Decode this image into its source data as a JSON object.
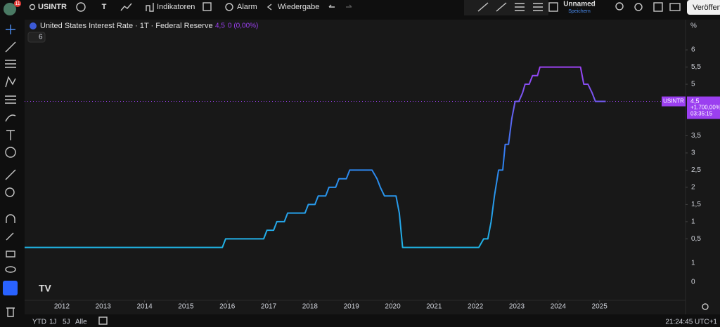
{
  "toolbar": {
    "badge": "11",
    "symbol": "USINTR",
    "interval": "T",
    "indicators": "Indikatoren",
    "alarm": "Alarm",
    "replay": "Wiedergabe",
    "layout_name": "Unnamed",
    "save": "Speichern",
    "publish": "Veröffentl"
  },
  "legend": {
    "value": "4,5",
    "change": "0 (0,00%)",
    "indicator_count": "6"
  },
  "scale_mode": "%",
  "lower_axis_labels": [
    "1",
    "0"
  ],
  "chart_data": {
    "type": "line",
    "x": [
      2011.1,
      2015.88,
      2015.96,
      2016.88,
      2016.96,
      2017.12,
      2017.2,
      2017.38,
      2017.46,
      2017.88,
      2017.96,
      2018.12,
      2018.2,
      2018.38,
      2018.46,
      2018.62,
      2018.7,
      2018.88,
      2018.96,
      2019.5,
      2019.62,
      2019.7,
      2019.8,
      2020.08,
      2020.16,
      2020.24,
      2022.08,
      2022.2,
      2022.3,
      2022.38,
      2022.46,
      2022.56,
      2022.66,
      2022.72,
      2022.8,
      2022.88,
      2022.96,
      2023.05,
      2023.14,
      2023.2,
      2023.3,
      2023.38,
      2023.5,
      2023.56,
      2024.54,
      2024.62,
      2024.72,
      2024.82,
      2024.9,
      2025.15
    ],
    "series": [
      {
        "name": "United States Interest Rate · 1T · Federal Reserve",
        "gradient": [
          "#1fb8e6",
          "#2f7ff0",
          "#a03ff2"
        ],
        "values": [
          0.25,
          0.25,
          0.5,
          0.5,
          0.75,
          0.75,
          1.0,
          1.0,
          1.25,
          1.25,
          1.5,
          1.5,
          1.75,
          1.75,
          2.0,
          2.0,
          2.25,
          2.25,
          2.5,
          2.5,
          2.25,
          2.0,
          1.75,
          1.75,
          1.25,
          0.25,
          0.25,
          0.5,
          0.5,
          1.0,
          1.75,
          2.5,
          2.5,
          3.25,
          3.25,
          4.0,
          4.5,
          4.5,
          4.75,
          5.0,
          5.0,
          5.25,
          5.25,
          5.5,
          5.5,
          5.0,
          5.0,
          4.75,
          4.5,
          4.5
        ]
      }
    ],
    "xlim": [
      2011.1,
      2027.08
    ],
    "ylim": [
      -1.29,
      6.88
    ],
    "xticks": [
      2012,
      2013,
      2014,
      2015,
      2016,
      2017,
      2018,
      2019,
      2020,
      2021,
      2022,
      2023,
      2024,
      2025
    ],
    "yticks": [
      {
        "value": 0.5,
        "label": "0,5"
      },
      1,
      {
        "value": 1.5,
        "label": "1,5"
      },
      2,
      {
        "value": 2.5,
        "label": "2,5"
      },
      3,
      {
        "value": 3.5,
        "label": "3,5"
      },
      5,
      {
        "value": 5.5,
        "label": "5,5"
      },
      6
    ],
    "last_price": {
      "value": 4.5,
      "label": "4,5",
      "symbol": "USINTR",
      "change": "+1.700,00%",
      "countdown": "03:35:15",
      "color": "#9b3ff0"
    },
    "grid": false
  },
  "bottom_bar": {
    "ranges": [
      "YTD",
      "1J",
      "5J",
      "Alle"
    ],
    "clock": "21:24:45 UTC+1"
  }
}
